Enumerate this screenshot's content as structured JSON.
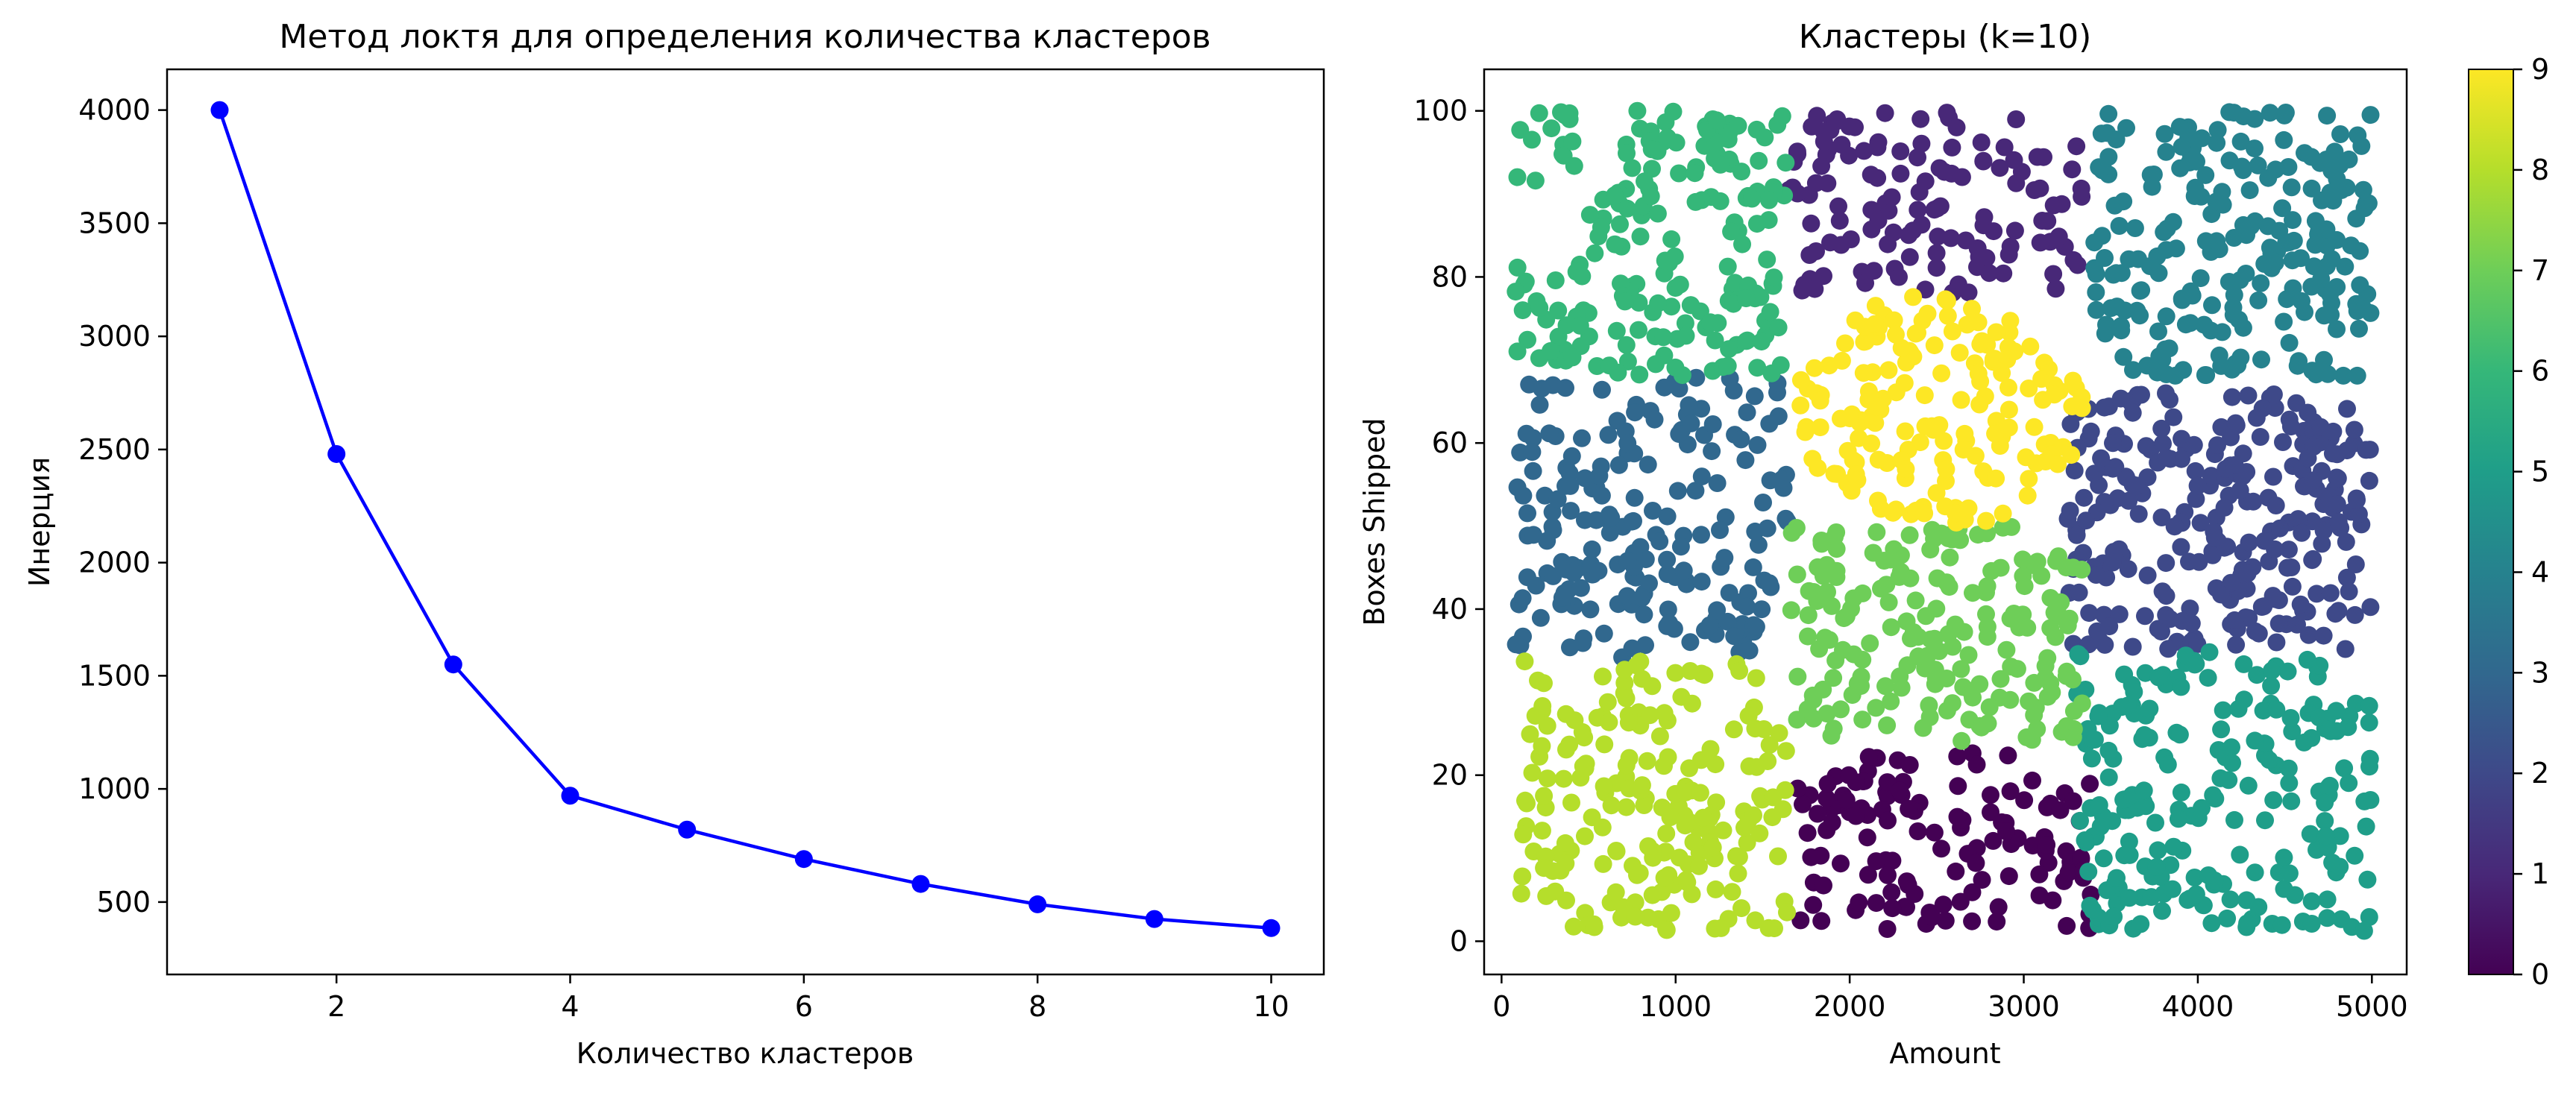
{
  "chart_data": [
    {
      "type": "line",
      "title": "Метод локтя для определения количества кластеров",
      "xlabel": "Количество кластеров",
      "ylabel": "Инерция",
      "xlim": [
        0.55,
        10.45
      ],
      "ylim": [
        180,
        4180
      ],
      "xticks": [
        2,
        4,
        6,
        8,
        10
      ],
      "yticks": [
        500,
        1000,
        1500,
        2000,
        2500,
        3000,
        3500,
        4000
      ],
      "grid": false,
      "series": [
        {
          "color": "#0000ff",
          "marker": "circle",
          "x": [
            1,
            2,
            3,
            4,
            5,
            6,
            7,
            8,
            9,
            10
          ],
          "y": [
            4000,
            2480,
            1550,
            970,
            820,
            690,
            580,
            490,
            425,
            385
          ]
        }
      ]
    },
    {
      "type": "scatter",
      "title": "Кластеры (k=10)",
      "xlabel": "Amount",
      "ylabel": "Boxes Shipped",
      "xlim": [
        -100,
        5200
      ],
      "ylim": [
        -4,
        105
      ],
      "xticks": [
        0,
        1000,
        2000,
        3000,
        4000,
        5000
      ],
      "yticks": [
        0,
        20,
        40,
        60,
        80,
        100
      ],
      "grid": false,
      "colormap": "viridis",
      "colorbar": {
        "min": 0,
        "max": 9,
        "ticks": [
          0,
          1,
          2,
          3,
          4,
          5,
          6,
          7,
          8,
          9
        ]
      },
      "cluster_colors": [
        "#440154",
        "#482878",
        "#3e4989",
        "#31688e",
        "#26828e",
        "#1f9e89",
        "#35b779",
        "#6ece58",
        "#b5de2b",
        "#fde725"
      ],
      "clusters": [
        {
          "label": 0,
          "x_range": [
            1700,
            3400
          ],
          "y_range": [
            1,
            23
          ],
          "count": 130
        },
        {
          "label": 1,
          "x_range": [
            1650,
            3350
          ],
          "y_range": [
            78,
            100
          ],
          "count": 130
        },
        {
          "label": 2,
          "x_range": [
            3250,
            5000
          ],
          "y_range": [
            35,
            66
          ],
          "count": 260
        },
        {
          "label": 3,
          "x_range": [
            80,
            1650
          ],
          "y_range": [
            34,
            68
          ],
          "count": 200
        },
        {
          "label": 4,
          "x_range": [
            3400,
            5000
          ],
          "y_range": [
            68,
            100
          ],
          "count": 230
        },
        {
          "label": 5,
          "x_range": [
            3300,
            5000
          ],
          "y_range": [
            1,
            35
          ],
          "count": 220
        },
        {
          "label": 6,
          "x_range": [
            80,
            1650
          ],
          "y_range": [
            68,
            100
          ],
          "count": 200
        },
        {
          "label": 7,
          "x_range": [
            1650,
            3350
          ],
          "y_range": [
            24,
            50
          ],
          "count": 190
        },
        {
          "label": 8,
          "x_range": [
            100,
            1650
          ],
          "y_range": [
            1,
            34
          ],
          "count": 200
        },
        {
          "label": 9,
          "x_range": [
            1700,
            3350
          ],
          "y_range": [
            50,
            78
          ],
          "count": 170
        }
      ]
    }
  ]
}
